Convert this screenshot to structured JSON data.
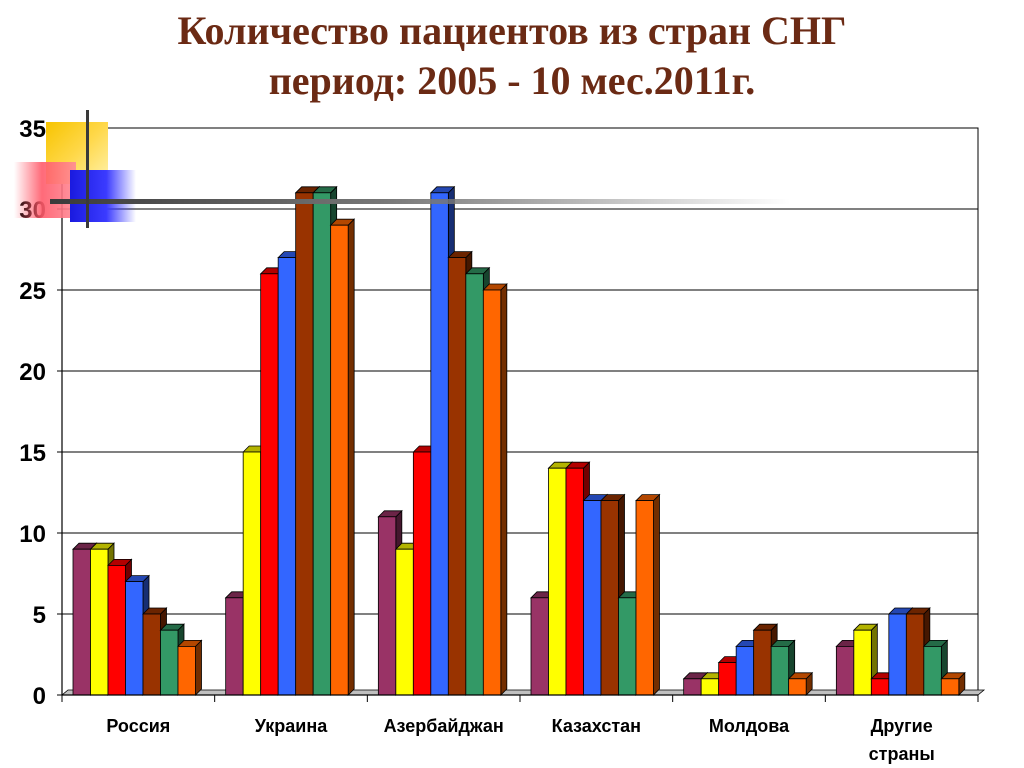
{
  "title_lines": [
    "Количество пациентов из стран СНГ",
    "период: 2005 - 10 мес.2011г."
  ],
  "chart_data": {
    "type": "bar",
    "title": "Количество пациентов из стран СНГ период: 2005 - 10 мес.2011г.",
    "categories": [
      "Россия",
      "Украина",
      "Азербайджан",
      "Казахстан",
      "Молдова",
      "Другие страны"
    ],
    "category_label_lines": [
      [
        "Россия"
      ],
      [
        "Украина"
      ],
      [
        "Азербайджан"
      ],
      [
        "Казахстан"
      ],
      [
        "Молдова"
      ],
      [
        "Другие",
        "страны"
      ]
    ],
    "series": [
      {
        "color": "#993366",
        "values": [
          9,
          6,
          11,
          6,
          1,
          3
        ]
      },
      {
        "color": "#ffff00",
        "values": [
          9,
          15,
          9,
          14,
          1,
          4
        ]
      },
      {
        "color": "#ff0000",
        "values": [
          8,
          26,
          15,
          14,
          2,
          1
        ]
      },
      {
        "color": "#3366ff",
        "values": [
          7,
          27,
          31,
          12,
          3,
          5
        ]
      },
      {
        "color": "#993300",
        "values": [
          5,
          31,
          27,
          12,
          4,
          5
        ]
      },
      {
        "color": "#339966",
        "values": [
          4,
          31,
          26,
          6,
          3,
          3
        ]
      },
      {
        "color": "#ff6600",
        "values": [
          3,
          29,
          25,
          12,
          1,
          1
        ]
      }
    ],
    "ylim": [
      0,
      35
    ],
    "yticks": [
      0,
      5,
      10,
      15,
      20,
      25,
      30,
      35
    ],
    "xlabel": "",
    "ylabel": "",
    "grid": true,
    "legend": "none"
  }
}
